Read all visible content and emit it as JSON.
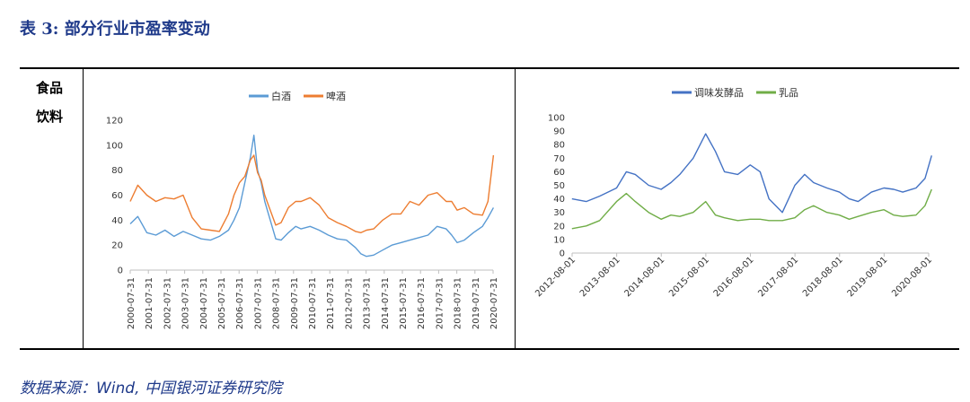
{
  "header": {
    "title": "表 3:  部分行业市盈率变动"
  },
  "category": {
    "line1": "食品",
    "line2": "饮料"
  },
  "footer": {
    "source": "数据来源：Wind,  中国银河证券研究院"
  },
  "chart_data": [
    {
      "type": "line",
      "ylim": [
        0,
        120
      ],
      "yticks": [
        0,
        20,
        40,
        60,
        80,
        100,
        120
      ],
      "categories": [
        "2000-07-31",
        "2001-07-31",
        "2002-07-31",
        "2003-07-31",
        "2004-07-31",
        "2005-07-31",
        "2006-07-31",
        "2007-07-31",
        "2008-07-31",
        "2009-07-31",
        "2010-07-31",
        "2011-07-31",
        "2012-07-31",
        "2013-07-31",
        "2014-07-31",
        "2015-07-31",
        "2016-07-31",
        "2017-07-31",
        "2018-07-31",
        "2019-07-31",
        "2020-07-31"
      ],
      "x": [
        2000.58,
        2001.0,
        2001.5,
        2002.0,
        2002.5,
        2003.0,
        2003.5,
        2004.0,
        2004.5,
        2005.0,
        2005.5,
        2006.0,
        2006.3,
        2006.6,
        2006.9,
        2007.2,
        2007.4,
        2007.6,
        2007.8,
        2008.0,
        2008.3,
        2008.6,
        2008.9,
        2009.3,
        2009.7,
        2010.0,
        2010.5,
        2011.0,
        2011.5,
        2012.0,
        2012.5,
        2013.0,
        2013.3,
        2013.6,
        2014.0,
        2014.5,
        2015.0,
        2015.5,
        2016.0,
        2016.5,
        2017.0,
        2017.5,
        2018.0,
        2018.3,
        2018.6,
        2019.0,
        2019.5,
        2020.0,
        2020.3,
        2020.6
      ],
      "series": [
        {
          "name": "白酒",
          "color": "#5b9bd5",
          "values": [
            37,
            43,
            30,
            28,
            32,
            27,
            31,
            28,
            25,
            24,
            27,
            32,
            40,
            50,
            70,
            90,
            108,
            80,
            70,
            55,
            40,
            25,
            24,
            30,
            35,
            33,
            35,
            32,
            28,
            25,
            24,
            18,
            13,
            11,
            12,
            16,
            20,
            22,
            24,
            26,
            28,
            35,
            33,
            28,
            22,
            24,
            30,
            35,
            42,
            50
          ]
        },
        {
          "name": "啤酒",
          "color": "#ed7d31",
          "values": [
            55,
            68,
            60,
            55,
            58,
            57,
            60,
            42,
            33,
            32,
            31,
            45,
            60,
            70,
            75,
            88,
            92,
            78,
            72,
            60,
            48,
            36,
            38,
            50,
            55,
            55,
            58,
            52,
            42,
            38,
            35,
            31,
            30,
            32,
            33,
            40,
            45,
            45,
            55,
            52,
            60,
            62,
            55,
            55,
            48,
            50,
            45,
            44,
            55,
            92
          ]
        }
      ]
    },
    {
      "type": "line",
      "ylim": [
        0,
        100
      ],
      "yticks": [
        0,
        10,
        20,
        30,
        40,
        50,
        60,
        70,
        80,
        90,
        100
      ],
      "categories": [
        "2012-08-01",
        "2013-08-01",
        "2014-08-01",
        "2015-08-01",
        "2016-08-01",
        "2017-08-01",
        "2018-08-01",
        "2019-08-01",
        "2020-08-01"
      ],
      "x": [
        2012.58,
        2012.9,
        2013.2,
        2013.58,
        2013.8,
        2014.0,
        2014.3,
        2014.58,
        2014.8,
        2015.0,
        2015.3,
        2015.58,
        2015.8,
        2016.0,
        2016.3,
        2016.58,
        2016.8,
        2017.0,
        2017.3,
        2017.58,
        2017.8,
        2018.0,
        2018.3,
        2018.58,
        2018.8,
        2019.0,
        2019.3,
        2019.58,
        2019.8,
        2020.0,
        2020.3,
        2020.5,
        2020.65
      ],
      "series": [
        {
          "name": "调味发酵品",
          "color": "#4472c4",
          "values": [
            40,
            38,
            42,
            48,
            60,
            58,
            50,
            47,
            52,
            58,
            70,
            88,
            75,
            60,
            58,
            65,
            60,
            40,
            30,
            50,
            58,
            52,
            48,
            45,
            40,
            38,
            45,
            48,
            47,
            45,
            48,
            55,
            72
          ]
        },
        {
          "name": "乳品",
          "color": "#70ad47",
          "values": [
            18,
            20,
            24,
            38,
            44,
            38,
            30,
            25,
            28,
            27,
            30,
            38,
            28,
            26,
            24,
            25,
            25,
            24,
            24,
            26,
            32,
            35,
            30,
            28,
            25,
            27,
            30,
            32,
            28,
            27,
            28,
            35,
            47
          ]
        }
      ]
    }
  ]
}
